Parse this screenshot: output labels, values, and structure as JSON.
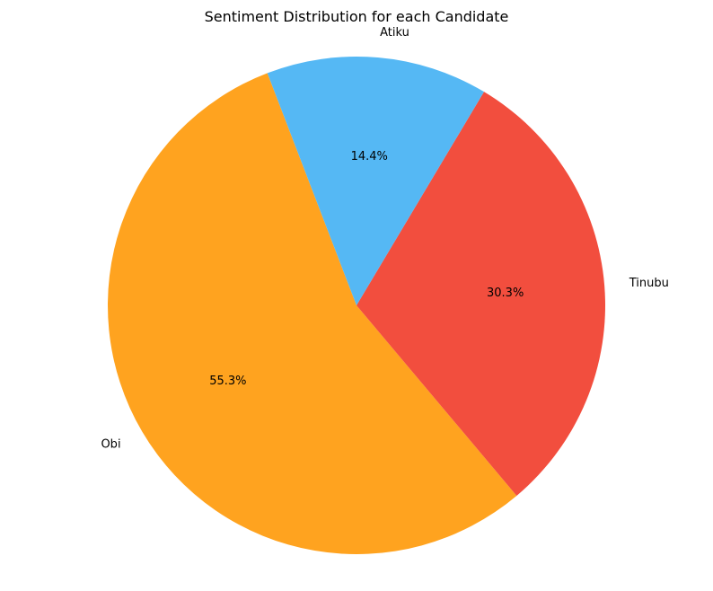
{
  "chart_data": {
    "type": "pie",
    "title": "Sentiment Distribution for each Candidate",
    "start_angle_deg": 111,
    "direction": "counterclockwise",
    "slices": [
      {
        "label": "Obi",
        "value": 55.3,
        "pct_label": "55.3%",
        "color": "#ffa31f"
      },
      {
        "label": "Tinubu",
        "value": 30.3,
        "pct_label": "30.3%",
        "color": "#f24e3e"
      },
      {
        "label": "Atiku",
        "value": 14.4,
        "pct_label": "14.4%",
        "color": "#55b8f4"
      }
    ]
  }
}
